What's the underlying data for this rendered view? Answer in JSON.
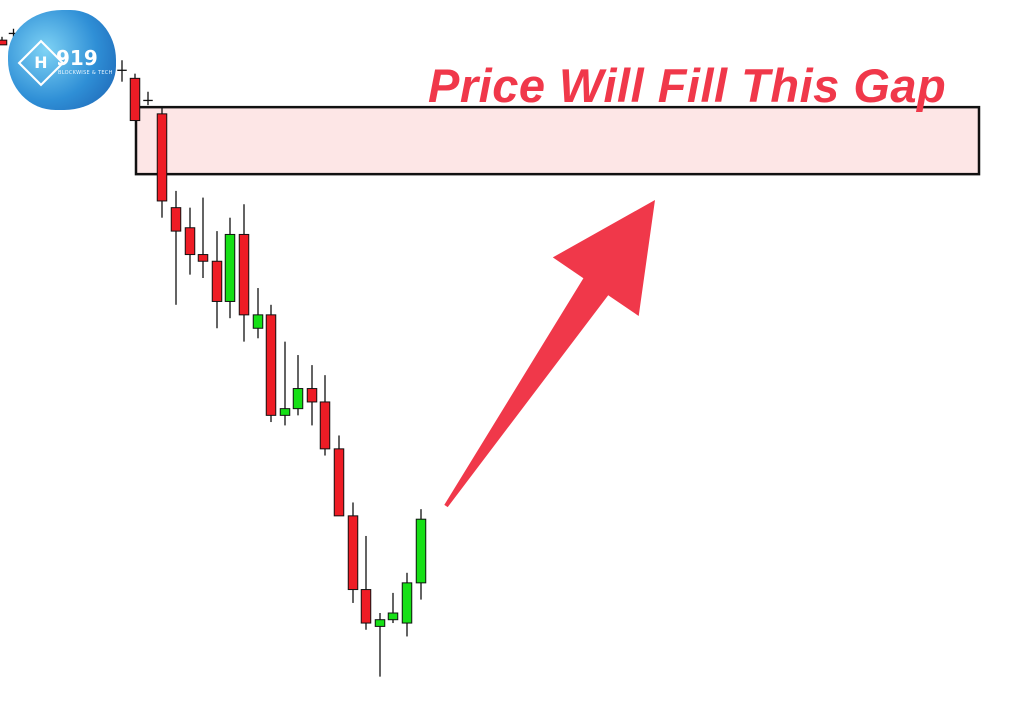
{
  "headline": "Price Will Fill This Gap",
  "logo": {
    "number": "919",
    "mark": "H",
    "subtitle": "BLOCKWISE & TECH"
  },
  "colors": {
    "bullish": "#16e016",
    "bearish": "#ee1c25",
    "wick": "#111111",
    "gap_fill": "#fde6e6",
    "gap_border": "#111111",
    "arrow": "#f0384a",
    "headline": "#f0384a"
  },
  "chart_data": {
    "type": "candlestick",
    "title": "Price Will Fill This Gap",
    "xlabel": "",
    "ylabel": "",
    "grid": false,
    "ylim": [
      0,
      100
    ],
    "gap_zone": {
      "low": 75.5,
      "high": 85.5
    },
    "arrow": {
      "from_index": 31,
      "from_price": 25,
      "to_index": 47,
      "to_price": 75
    },
    "candles": [
      {
        "o": 95.5,
        "h": 96.0,
        "l": 94.8,
        "c": 94.8
      },
      {
        "o": 96.5,
        "h": 97.2,
        "l": 95.8,
        "c": 96.5
      },
      {
        "o": 91.5,
        "h": 92.5,
        "l": 90.5,
        "c": 91.5
      },
      {
        "o": 91.0,
        "h": 92.5,
        "l": 89.3,
        "c": 91.0
      },
      {
        "o": 89.8,
        "h": 90.5,
        "l": 83.5,
        "c": 83.5
      },
      {
        "o": 86.5,
        "h": 87.8,
        "l": 85.8,
        "c": 86.5
      },
      {
        "o": 84.5,
        "h": 85.4,
        "l": 69.0,
        "c": 71.5
      },
      {
        "o": 70.5,
        "h": 73.0,
        "l": 56.0,
        "c": 67.0
      },
      {
        "o": 67.5,
        "h": 70.5,
        "l": 60.5,
        "c": 63.5
      },
      {
        "o": 63.5,
        "h": 72.0,
        "l": 60.0,
        "c": 62.5
      },
      {
        "o": 62.5,
        "h": 67.0,
        "l": 52.5,
        "c": 56.5
      },
      {
        "o": 56.5,
        "h": 69.0,
        "l": 54.0,
        "c": 66.5
      },
      {
        "o": 66.5,
        "h": 71.0,
        "l": 50.5,
        "c": 54.5
      },
      {
        "o": 52.5,
        "h": 58.5,
        "l": 51.0,
        "c": 54.5
      },
      {
        "o": 54.5,
        "h": 56.0,
        "l": 38.5,
        "c": 39.5
      },
      {
        "o": 39.5,
        "h": 50.5,
        "l": 38.0,
        "c": 40.5
      },
      {
        "o": 40.5,
        "h": 48.5,
        "l": 39.5,
        "c": 43.5
      },
      {
        "o": 43.5,
        "h": 47.0,
        "l": 38.0,
        "c": 41.5
      },
      {
        "o": 41.5,
        "h": 45.5,
        "l": 33.5,
        "c": 34.5
      },
      {
        "o": 34.5,
        "h": 36.5,
        "l": 24.5,
        "c": 24.5
      },
      {
        "o": 24.5,
        "h": 26.5,
        "l": 11.5,
        "c": 13.5
      },
      {
        "o": 13.5,
        "h": 21.5,
        "l": 7.5,
        "c": 8.5
      },
      {
        "o": 8.0,
        "h": 10.0,
        "l": 0.5,
        "c": 9.0
      },
      {
        "o": 9.0,
        "h": 13.0,
        "l": 8.5,
        "c": 10.0
      },
      {
        "o": 8.5,
        "h": 16.0,
        "l": 6.5,
        "c": 14.5
      },
      {
        "o": 14.5,
        "h": 25.5,
        "l": 12.0,
        "c": 24.0
      }
    ]
  }
}
